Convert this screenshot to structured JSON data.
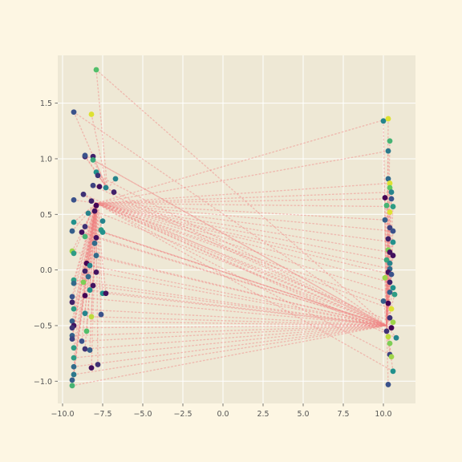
{
  "chart_data": {
    "type": "scatter",
    "title": "",
    "xlabel": "",
    "ylabel": "",
    "xlim": [
      -10.3,
      12.0
    ],
    "ylim": [
      -1.2,
      1.93
    ],
    "xticks": [
      -10.0,
      -7.5,
      -5.0,
      -2.5,
      0.0,
      2.5,
      5.0,
      7.5,
      10.0
    ],
    "yticks": [
      -1.0,
      -0.5,
      0.0,
      0.5,
      1.0,
      1.5
    ],
    "xtick_labels": [
      "−10.0",
      "−7.5",
      "−5.0",
      "−2.5",
      "0.0",
      "2.5",
      "5.0",
      "7.5",
      "10.0"
    ],
    "ytick_labels": [
      "−1.0",
      "−0.5",
      "0.0",
      "0.5",
      "1.0",
      "1.5"
    ],
    "grid": true,
    "colors": {
      "figure_bg": "#fdf6e3",
      "axes_bg": "#eee8d5",
      "grid": "#ffffff",
      "link_line": "#f08080",
      "colormap": [
        "#440154",
        "#3b528b",
        "#21918c",
        "#5ec962",
        "#fde725"
      ]
    },
    "hubs": [
      {
        "x": -7.9,
        "y": 0.6
      },
      {
        "x": -7.2,
        "y": 0.73
      },
      {
        "x": 10.2,
        "y": -0.5
      }
    ],
    "points": [
      {
        "x": -9.3,
        "y": 1.42,
        "c": 0.25
      },
      {
        "x": -8.6,
        "y": 1.02,
        "c": 0.1
      },
      {
        "x": -8.6,
        "y": 1.03,
        "c": 0.25
      },
      {
        "x": -8.2,
        "y": 1.4,
        "c": 0.95
      },
      {
        "x": -7.9,
        "y": 1.8,
        "c": 0.7
      },
      {
        "x": -8.1,
        "y": 1.02,
        "c": 0.1
      },
      {
        "x": -8.1,
        "y": 0.99,
        "c": 0.6
      },
      {
        "x": -7.9,
        "y": 0.88,
        "c": 0.5
      },
      {
        "x": -7.8,
        "y": 0.85,
        "c": 0.15
      },
      {
        "x": -6.7,
        "y": 0.82,
        "c": 0.45
      },
      {
        "x": -8.1,
        "y": 0.76,
        "c": 0.2
      },
      {
        "x": -7.7,
        "y": 0.75,
        "c": 0.05
      },
      {
        "x": -7.3,
        "y": 0.74,
        "c": 0.45
      },
      {
        "x": -6.8,
        "y": 0.7,
        "c": 0.1
      },
      {
        "x": -8.7,
        "y": 0.68,
        "c": 0.15
      },
      {
        "x": -9.3,
        "y": 0.63,
        "c": 0.25
      },
      {
        "x": -8.2,
        "y": 0.62,
        "c": 0.1
      },
      {
        "x": -7.9,
        "y": 0.58,
        "c": 0.0
      },
      {
        "x": -8.0,
        "y": 0.53,
        "c": 0.05
      },
      {
        "x": -8.4,
        "y": 0.51,
        "c": 0.45
      },
      {
        "x": -9.3,
        "y": 0.43,
        "c": 0.5
      },
      {
        "x": -7.5,
        "y": 0.44,
        "c": 0.45
      },
      {
        "x": -8.6,
        "y": 0.39,
        "c": 0.15
      },
      {
        "x": -9.4,
        "y": 0.35,
        "c": 0.3
      },
      {
        "x": -8.8,
        "y": 0.34,
        "c": 0.05
      },
      {
        "x": -7.6,
        "y": 0.36,
        "c": 0.55
      },
      {
        "x": -7.5,
        "y": 0.34,
        "c": 0.5
      },
      {
        "x": -8.6,
        "y": 0.3,
        "c": 0.65
      },
      {
        "x": -7.9,
        "y": 0.29,
        "c": 0.05
      },
      {
        "x": -8.0,
        "y": 0.24,
        "c": 0.35
      },
      {
        "x": -9.4,
        "y": 0.17,
        "c": 0.85
      },
      {
        "x": -9.3,
        "y": 0.15,
        "c": 0.55
      },
      {
        "x": -7.9,
        "y": 0.13,
        "c": 0.35
      },
      {
        "x": -8.5,
        "y": 0.06,
        "c": 0.0
      },
      {
        "x": -8.3,
        "y": 0.04,
        "c": 0.45
      },
      {
        "x": -8.6,
        "y": -0.01,
        "c": 0.1
      },
      {
        "x": -7.9,
        "y": -0.02,
        "c": 0.05
      },
      {
        "x": -8.4,
        "y": -0.06,
        "c": 0.35
      },
      {
        "x": -9.3,
        "y": -0.09,
        "c": 0.55
      },
      {
        "x": -8.7,
        "y": -0.11,
        "c": 0.8
      },
      {
        "x": -9.3,
        "y": -0.12,
        "c": 0.35
      },
      {
        "x": -8.1,
        "y": -0.14,
        "c": 0.05
      },
      {
        "x": -8.3,
        "y": -0.18,
        "c": 0.5
      },
      {
        "x": -7.5,
        "y": -0.21,
        "c": 0.5
      },
      {
        "x": -7.3,
        "y": -0.21,
        "c": 0.05
      },
      {
        "x": -8.6,
        "y": -0.23,
        "c": 0.0
      },
      {
        "x": -9.4,
        "y": -0.24,
        "c": 0.25
      },
      {
        "x": -9.4,
        "y": -0.29,
        "c": 0.1
      },
      {
        "x": -9.3,
        "y": -0.35,
        "c": 0.55
      },
      {
        "x": -8.6,
        "y": -0.39,
        "c": 0.45
      },
      {
        "x": -8.2,
        "y": -0.42,
        "c": 0.9
      },
      {
        "x": -7.6,
        "y": -0.4,
        "c": 0.25
      },
      {
        "x": -9.4,
        "y": -0.46,
        "c": 0.3
      },
      {
        "x": -9.3,
        "y": -0.5,
        "c": 0.05
      },
      {
        "x": -9.4,
        "y": -0.52,
        "c": 0.15
      },
      {
        "x": -8.5,
        "y": -0.55,
        "c": 0.7
      },
      {
        "x": -9.4,
        "y": -0.59,
        "c": 0.3
      },
      {
        "x": -9.4,
        "y": -0.62,
        "c": 0.2
      },
      {
        "x": -8.8,
        "y": -0.64,
        "c": 0.25
      },
      {
        "x": -9.3,
        "y": -0.7,
        "c": 0.55
      },
      {
        "x": -8.6,
        "y": -0.71,
        "c": 0.15
      },
      {
        "x": -8.3,
        "y": -0.72,
        "c": 0.3
      },
      {
        "x": -9.3,
        "y": -0.79,
        "c": 0.55
      },
      {
        "x": -7.8,
        "y": -0.85,
        "c": 0.15
      },
      {
        "x": -9.3,
        "y": -0.87,
        "c": 0.35
      },
      {
        "x": -8.2,
        "y": -0.88,
        "c": 0.05
      },
      {
        "x": -9.3,
        "y": -0.94,
        "c": 0.4
      },
      {
        "x": -9.4,
        "y": -0.99,
        "c": 0.3
      },
      {
        "x": -9.4,
        "y": -1.04,
        "c": 0.65
      },
      {
        "x": 10.0,
        "y": 1.34,
        "c": 0.45
      },
      {
        "x": 10.3,
        "y": 1.36,
        "c": 0.95
      },
      {
        "x": 10.4,
        "y": 1.16,
        "c": 0.65
      },
      {
        "x": 10.3,
        "y": 1.07,
        "c": 0.4
      },
      {
        "x": 10.3,
        "y": 0.82,
        "c": 0.35
      },
      {
        "x": 10.4,
        "y": 0.78,
        "c": 0.95
      },
      {
        "x": 10.4,
        "y": 0.74,
        "c": 0.75
      },
      {
        "x": 10.5,
        "y": 0.7,
        "c": 0.45
      },
      {
        "x": 10.1,
        "y": 0.65,
        "c": 0.0
      },
      {
        "x": 10.5,
        "y": 0.64,
        "c": 0.25
      },
      {
        "x": 10.2,
        "y": 0.58,
        "c": 0.65
      },
      {
        "x": 10.6,
        "y": 0.57,
        "c": 0.55
      },
      {
        "x": 10.4,
        "y": 0.52,
        "c": 0.95
      },
      {
        "x": 10.1,
        "y": 0.45,
        "c": 0.3
      },
      {
        "x": 10.4,
        "y": 0.38,
        "c": 0.2
      },
      {
        "x": 10.6,
        "y": 0.35,
        "c": 0.25
      },
      {
        "x": 10.3,
        "y": 0.28,
        "c": 0.1
      },
      {
        "x": 10.6,
        "y": 0.25,
        "c": 0.5
      },
      {
        "x": 10.3,
        "y": 0.18,
        "c": 0.8
      },
      {
        "x": 10.4,
        "y": 0.16,
        "c": 0.05
      },
      {
        "x": 10.6,
        "y": 0.13,
        "c": 0.05
      },
      {
        "x": 10.2,
        "y": 0.09,
        "c": 0.6
      },
      {
        "x": 10.4,
        "y": 0.06,
        "c": 0.45
      },
      {
        "x": 10.4,
        "y": 0.01,
        "c": 0.35
      },
      {
        "x": 10.3,
        "y": -0.02,
        "c": 0.05
      },
      {
        "x": 10.5,
        "y": -0.04,
        "c": 0.25
      },
      {
        "x": 10.1,
        "y": -0.07,
        "c": 0.85
      },
      {
        "x": 10.4,
        "y": -0.11,
        "c": 0.1
      },
      {
        "x": 10.6,
        "y": -0.16,
        "c": 0.5
      },
      {
        "x": 10.4,
        "y": -0.2,
        "c": 0.3
      },
      {
        "x": 10.7,
        "y": -0.22,
        "c": 0.55
      },
      {
        "x": 10.0,
        "y": -0.28,
        "c": 0.3
      },
      {
        "x": 10.3,
        "y": -0.3,
        "c": 0.0
      },
      {
        "x": 10.5,
        "y": -0.35,
        "c": 0.95
      },
      {
        "x": 10.4,
        "y": -0.43,
        "c": 0.15
      },
      {
        "x": 10.6,
        "y": -0.47,
        "c": 0.85
      },
      {
        "x": 10.5,
        "y": -0.52,
        "c": 0.0
      },
      {
        "x": 10.2,
        "y": -0.55,
        "c": 0.15
      },
      {
        "x": 10.3,
        "y": -0.6,
        "c": 0.9
      },
      {
        "x": 10.8,
        "y": -0.61,
        "c": 0.45
      },
      {
        "x": 10.4,
        "y": -0.66,
        "c": 0.8
      },
      {
        "x": 10.4,
        "y": -0.76,
        "c": 0.2
      },
      {
        "x": 10.5,
        "y": -0.78,
        "c": 0.85
      },
      {
        "x": 10.6,
        "y": -0.91,
        "c": 0.5
      },
      {
        "x": 10.3,
        "y": -1.03,
        "c": 0.25
      }
    ]
  }
}
